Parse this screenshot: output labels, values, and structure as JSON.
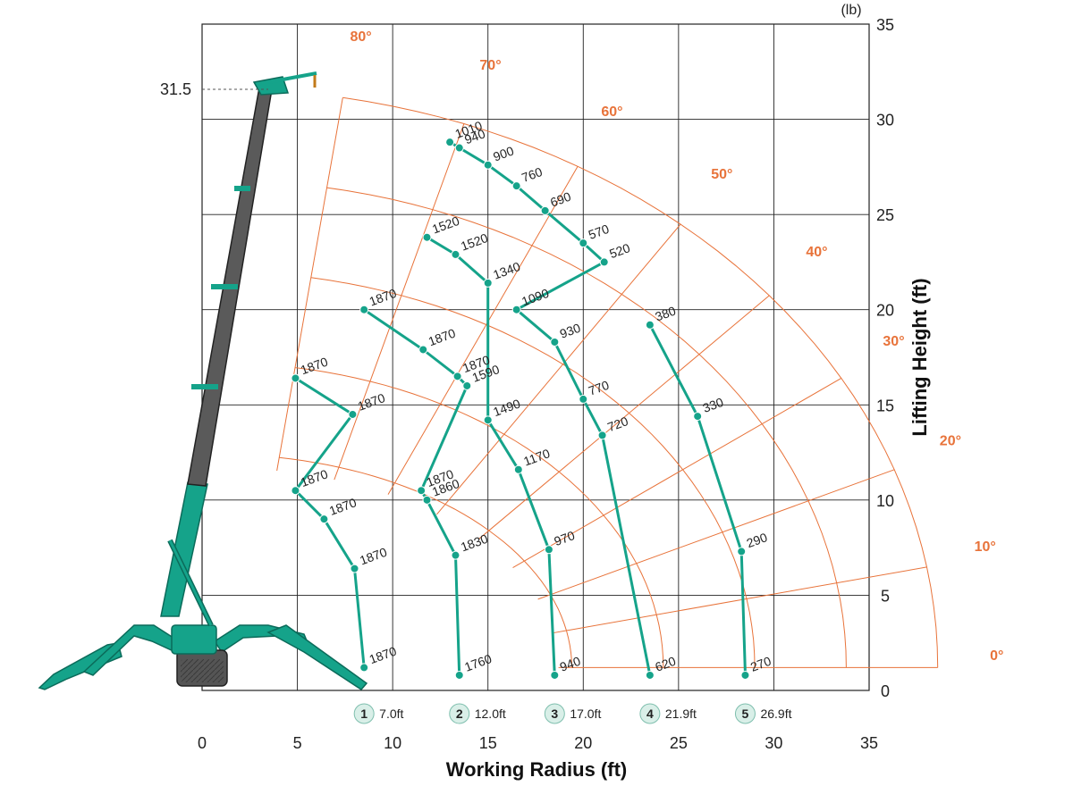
{
  "chart_data": {
    "type": "line",
    "title": "",
    "xlabel": "Working Radius (ft)",
    "ylabel": "Lifting Height (ft)",
    "unit_label": "(lb)",
    "xlim": [
      0,
      35
    ],
    "ylim": [
      0,
      35
    ],
    "x_ticks": [
      "0",
      "5",
      "10",
      "15",
      "20",
      "25",
      "30",
      "35"
    ],
    "y_ticks": [
      "0",
      "5",
      "10",
      "15",
      "20",
      "25",
      "30",
      "35"
    ],
    "grid": true,
    "max_height_marker": "31.5",
    "colors": {
      "capacity": "#15a38a",
      "angle": "#e8733a",
      "crane": "#15a38a",
      "boom_dark": "#555555"
    },
    "angles": [
      "0°",
      "10°",
      "20°",
      "30°",
      "40°",
      "50°",
      "60°",
      "70°",
      "80°"
    ],
    "boom_lengths": [
      {
        "num": "1",
        "label": "7.0ft"
      },
      {
        "num": "2",
        "label": "12.0ft"
      },
      {
        "num": "3",
        "label": "17.0ft"
      },
      {
        "num": "4",
        "label": "21.9ft"
      },
      {
        "num": "5",
        "label": "26.9ft"
      }
    ],
    "series": [
      {
        "name": "1",
        "points": [
          {
            "x": 8.5,
            "y": 1.2,
            "value": "1870"
          },
          {
            "x": 8.0,
            "y": 6.4,
            "value": "1870"
          },
          {
            "x": 6.4,
            "y": 9.0,
            "value": "1870"
          },
          {
            "x": 4.9,
            "y": 10.5,
            "value": "1870"
          },
          {
            "x": 7.9,
            "y": 14.5,
            "value": "1870"
          },
          {
            "x": 4.9,
            "y": 16.4,
            "value": "1870"
          }
        ]
      },
      {
        "name": "2",
        "points": [
          {
            "x": 13.5,
            "y": 0.8,
            "value": "1760"
          },
          {
            "x": 13.3,
            "y": 7.1,
            "value": "1830"
          },
          {
            "x": 11.8,
            "y": 10.0,
            "value": "1860"
          },
          {
            "x": 11.5,
            "y": 10.5,
            "value": "1870"
          },
          {
            "x": 13.9,
            "y": 16.0,
            "value": "1590"
          },
          {
            "x": 13.4,
            "y": 16.5,
            "value": "1870"
          },
          {
            "x": 11.6,
            "y": 17.9,
            "value": "1870"
          },
          {
            "x": 8.5,
            "y": 20.0,
            "value": "1870"
          }
        ]
      },
      {
        "name": "3",
        "points": [
          {
            "x": 18.5,
            "y": 0.8,
            "value": "940"
          },
          {
            "x": 18.2,
            "y": 7.4,
            "value": "970"
          },
          {
            "x": 16.6,
            "y": 11.6,
            "value": "1170"
          },
          {
            "x": 15.0,
            "y": 14.2,
            "value": "1490"
          },
          {
            "x": 15.0,
            "y": 21.4,
            "value": "1340"
          },
          {
            "x": 13.3,
            "y": 22.9,
            "value": "1520"
          },
          {
            "x": 11.8,
            "y": 23.8,
            "value": "1520"
          }
        ]
      },
      {
        "name": "4",
        "points": [
          {
            "x": 23.5,
            "y": 0.8,
            "value": "620"
          },
          {
            "x": 21.0,
            "y": 13.4,
            "value": "720"
          },
          {
            "x": 20.0,
            "y": 15.3,
            "value": "770"
          },
          {
            "x": 18.5,
            "y": 18.3,
            "value": "930"
          },
          {
            "x": 16.5,
            "y": 20.0,
            "value": "1090"
          },
          {
            "x": 21.1,
            "y": 22.5,
            "value": "520"
          },
          {
            "x": 20.0,
            "y": 23.5,
            "value": "570"
          },
          {
            "x": 18.0,
            "y": 25.2,
            "value": "690"
          },
          {
            "x": 16.5,
            "y": 26.5,
            "value": "760"
          },
          {
            "x": 15.0,
            "y": 27.6,
            "value": "900"
          },
          {
            "x": 13.5,
            "y": 28.5,
            "value": "940"
          },
          {
            "x": 13.0,
            "y": 28.8,
            "value": "1010"
          }
        ]
      },
      {
        "name": "5",
        "points": [
          {
            "x": 28.5,
            "y": 0.8,
            "value": "270"
          },
          {
            "x": 28.3,
            "y": 7.3,
            "value": "290"
          },
          {
            "x": 26.0,
            "y": 14.4,
            "value": "330"
          },
          {
            "x": 23.5,
            "y": 19.2,
            "value": "380"
          }
        ]
      }
    ]
  }
}
